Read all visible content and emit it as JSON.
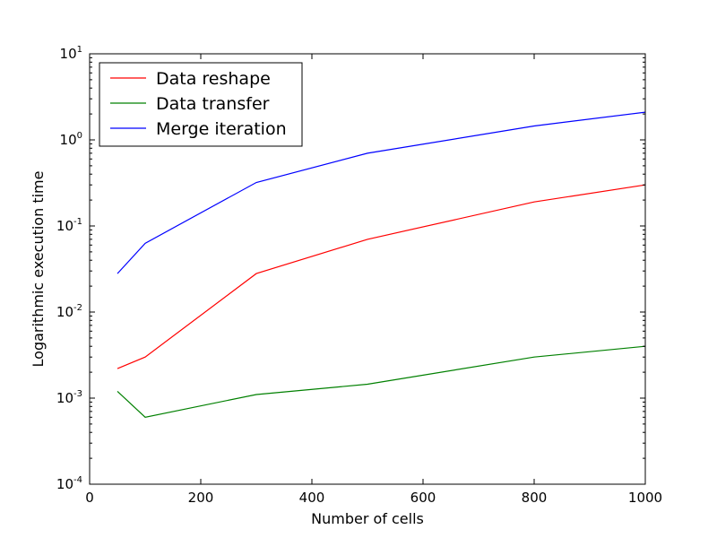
{
  "chart_data": {
    "type": "line",
    "xlabel": "Number of cells",
    "ylabel": "Logarithmic execution time",
    "xlim": [
      0,
      1000
    ],
    "ylim": [
      0.0001,
      10
    ],
    "yscale": "log",
    "grid": false,
    "legend_position": "top-left",
    "x_ticks": [
      0,
      200,
      400,
      600,
      800,
      1000
    ],
    "x_tick_labels": [
      "0",
      "200",
      "400",
      "600",
      "800",
      "1000"
    ],
    "y_ticks": [
      {
        "value": 0.0001,
        "base": "10",
        "exp": "-4"
      },
      {
        "value": 0.001,
        "base": "10",
        "exp": "-3"
      },
      {
        "value": 0.01,
        "base": "10",
        "exp": "-2"
      },
      {
        "value": 0.1,
        "base": "10",
        "exp": "-1"
      },
      {
        "value": 1,
        "base": "10",
        "exp": "0"
      },
      {
        "value": 10,
        "base": "10",
        "exp": "1"
      }
    ],
    "x": [
      50,
      100,
      300,
      500,
      800,
      1000
    ],
    "series": [
      {
        "name": "Data reshape",
        "color": "#ff0000",
        "values": [
          0.0022,
          0.003,
          0.028,
          0.07,
          0.19,
          0.3
        ]
      },
      {
        "name": "Data transfer",
        "color": "#008000",
        "values": [
          0.0012,
          0.0006,
          0.0011,
          0.00145,
          0.003,
          0.004
        ]
      },
      {
        "name": "Merge iteration",
        "color": "#0000ff",
        "values": [
          0.028,
          0.063,
          0.32,
          0.7,
          1.45,
          2.1
        ]
      }
    ]
  }
}
